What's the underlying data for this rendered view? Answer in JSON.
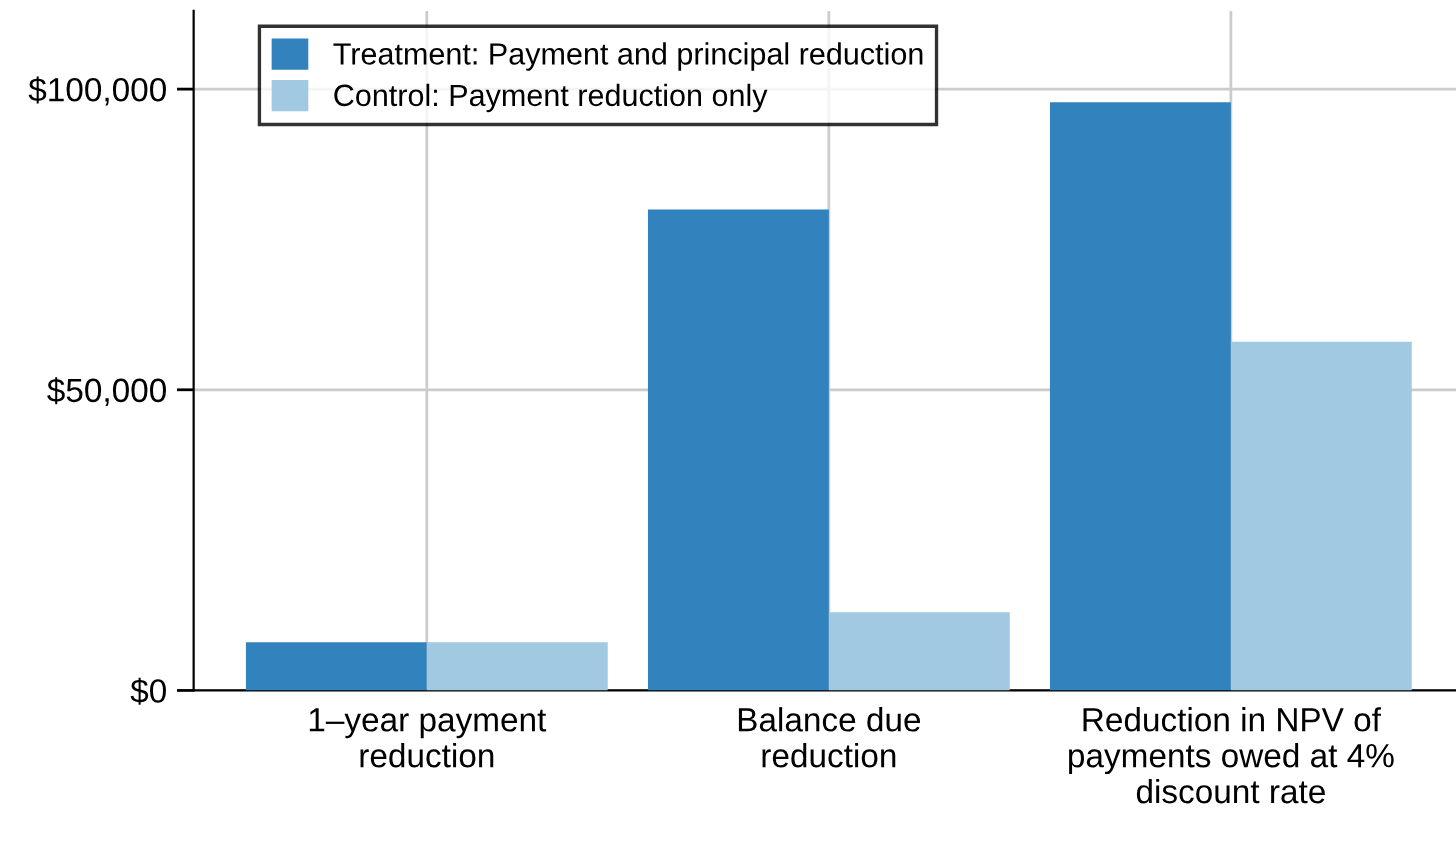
{
  "chart_data": {
    "type": "bar",
    "categories": [
      "1–year payment\nreduction",
      "Balance due\nreduction",
      "Reduction in NPV of\npayments owed at 4%\ndiscount rate"
    ],
    "series": [
      {
        "name": "Treatment: Payment and principal reduction",
        "color": "#3182bd",
        "values": [
          8000,
          80000,
          97800
        ]
      },
      {
        "name": "Control: Payment reduction only",
        "color": "#a1c9e1",
        "values": [
          8000,
          13000,
          58000
        ]
      }
    ],
    "ylim": [
      0,
      113000
    ],
    "yticks": [
      {
        "value": 0,
        "label": "$0"
      },
      {
        "value": 50000,
        "label": "$50,000"
      },
      {
        "value": 100000,
        "label": "$100,000"
      }
    ],
    "grid": true,
    "legend": "top left"
  }
}
